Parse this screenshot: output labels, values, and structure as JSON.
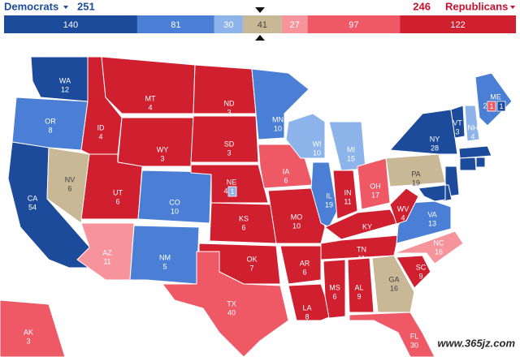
{
  "header": {
    "dem_label": "Democrats",
    "dem_total": 251,
    "rep_total": 246,
    "rep_label": "Republicans"
  },
  "bar": {
    "segments": [
      {
        "value": 140,
        "color": "#1d4b9b"
      },
      {
        "value": 81,
        "color": "#4a7fd5"
      },
      {
        "value": 30,
        "color": "#8cb4ea"
      },
      {
        "value": 41,
        "color": "#c8b896"
      },
      {
        "value": 27,
        "color": "#f7939b"
      },
      {
        "value": 97,
        "color": "#ef5966"
      },
      {
        "value": 122,
        "color": "#d01f2e"
      }
    ]
  },
  "states": [
    {
      "abbr": "WA",
      "votes": 12,
      "color": "#1d4b9b"
    },
    {
      "abbr": "OR",
      "votes": 8,
      "color": "#4a7fd5"
    },
    {
      "abbr": "CA",
      "votes": 54,
      "color": "#1d4b9b"
    },
    {
      "abbr": "NV",
      "votes": 6,
      "color": "#c8b896"
    },
    {
      "abbr": "ID",
      "votes": 4,
      "color": "#d01f2e"
    },
    {
      "abbr": "MT",
      "votes": 4,
      "color": "#d01f2e"
    },
    {
      "abbr": "WY",
      "votes": 3,
      "color": "#d01f2e"
    },
    {
      "abbr": "UT",
      "votes": 6,
      "color": "#d01f2e"
    },
    {
      "abbr": "AZ",
      "votes": 11,
      "color": "#f7939b"
    },
    {
      "abbr": "CO",
      "votes": 10,
      "color": "#4a7fd5"
    },
    {
      "abbr": "NM",
      "votes": 5,
      "color": "#4a7fd5"
    },
    {
      "abbr": "ND",
      "votes": 3,
      "color": "#d01f2e"
    },
    {
      "abbr": "SD",
      "votes": 3,
      "color": "#d01f2e"
    },
    {
      "abbr": "NE",
      "votes": 4,
      "color": "#d01f2e",
      "districts": [
        {
          "votes": 1,
          "color": "#8cb4ea"
        }
      ]
    },
    {
      "abbr": "KS",
      "votes": 6,
      "color": "#d01f2e"
    },
    {
      "abbr": "OK",
      "votes": 7,
      "color": "#d01f2e"
    },
    {
      "abbr": "TX",
      "votes": 40,
      "color": "#ef5966"
    },
    {
      "abbr": "MN",
      "votes": 10,
      "color": "#4a7fd5"
    },
    {
      "abbr": "IA",
      "votes": 6,
      "color": "#ef5966"
    },
    {
      "abbr": "MO",
      "votes": 10,
      "color": "#d01f2e"
    },
    {
      "abbr": "AR",
      "votes": 6,
      "color": "#d01f2e"
    },
    {
      "abbr": "LA",
      "votes": 8,
      "color": "#d01f2e"
    },
    {
      "abbr": "WI",
      "votes": 10,
      "color": "#8cb4ea"
    },
    {
      "abbr": "IL",
      "votes": 19,
      "color": "#4a7fd5"
    },
    {
      "abbr": "MI",
      "votes": 15,
      "color": "#8cb4ea"
    },
    {
      "abbr": "IN",
      "votes": 11,
      "color": "#d01f2e"
    },
    {
      "abbr": "OH",
      "votes": 17,
      "color": "#ef5966"
    },
    {
      "abbr": "KY",
      "votes": 8,
      "color": "#d01f2e"
    },
    {
      "abbr": "TN",
      "votes": 11,
      "color": "#d01f2e"
    },
    {
      "abbr": "MS",
      "votes": 6,
      "color": "#d01f2e"
    },
    {
      "abbr": "AL",
      "votes": 9,
      "color": "#d01f2e"
    },
    {
      "abbr": "GA",
      "votes": 16,
      "color": "#c8b896"
    },
    {
      "abbr": "FL",
      "votes": 30,
      "color": "#ef5966"
    },
    {
      "abbr": "SC",
      "votes": 9,
      "color": "#d01f2e"
    },
    {
      "abbr": "NC",
      "votes": 16,
      "color": "#f7939b"
    },
    {
      "abbr": "VA",
      "votes": 13,
      "color": "#4a7fd5"
    },
    {
      "abbr": "WV",
      "votes": 4,
      "color": "#d01f2e"
    },
    {
      "abbr": "PA",
      "votes": 19,
      "color": "#c8b896"
    },
    {
      "abbr": "NY",
      "votes": 28,
      "color": "#1d4b9b"
    },
    {
      "abbr": "VT",
      "votes": 3,
      "color": "#1d4b9b"
    },
    {
      "abbr": "NH",
      "votes": 4,
      "color": "#8cb4ea"
    },
    {
      "abbr": "ME",
      "votes": 2,
      "color": "#4a7fd5",
      "districts": [
        {
          "votes": 1,
          "color": "#ef5966"
        },
        {
          "votes": 1,
          "color": "#1d4b9b"
        }
      ]
    },
    {
      "abbr": "AK",
      "votes": 3,
      "color": "#ef5966"
    }
  ],
  "watermark": "www.365jz.com"
}
